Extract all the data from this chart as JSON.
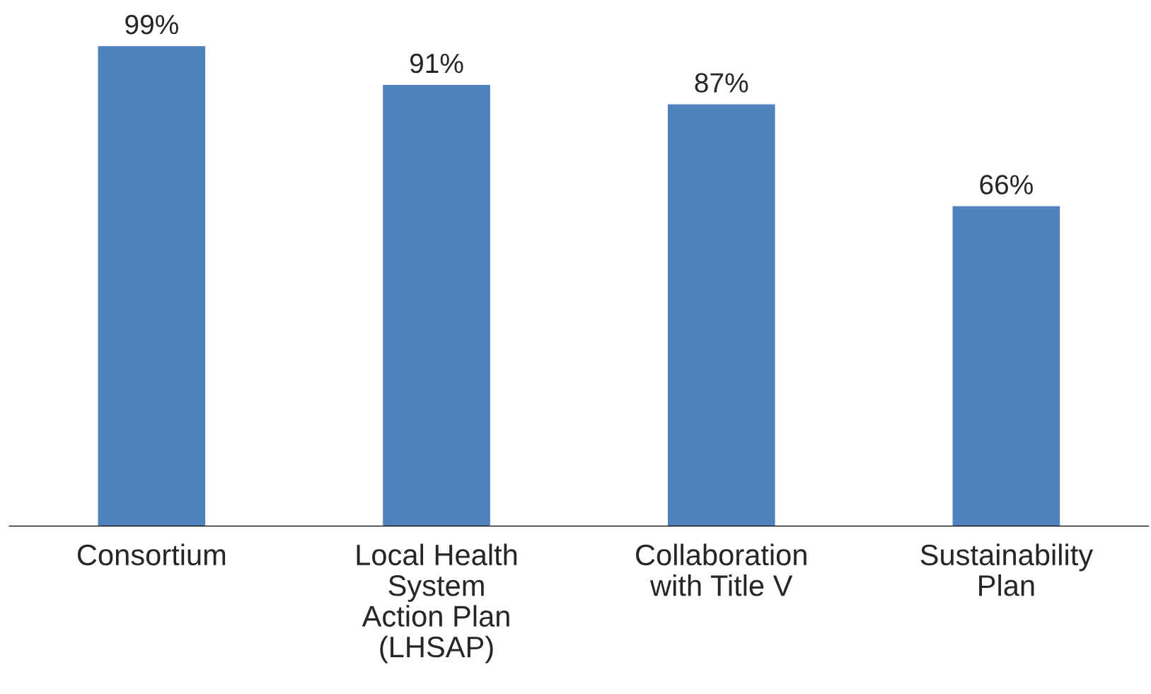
{
  "chart_data": {
    "type": "bar",
    "categories": [
      "Consortium",
      "Local Health\nSystem\nAction Plan\n(LHSAP)",
      "Collaboration\nwith Title V",
      "Sustainability\nPlan"
    ],
    "values": [
      99,
      91,
      87,
      66
    ],
    "value_labels": [
      "99%",
      "91%",
      "87%",
      "66%"
    ],
    "color": "#4f81bd"
  }
}
